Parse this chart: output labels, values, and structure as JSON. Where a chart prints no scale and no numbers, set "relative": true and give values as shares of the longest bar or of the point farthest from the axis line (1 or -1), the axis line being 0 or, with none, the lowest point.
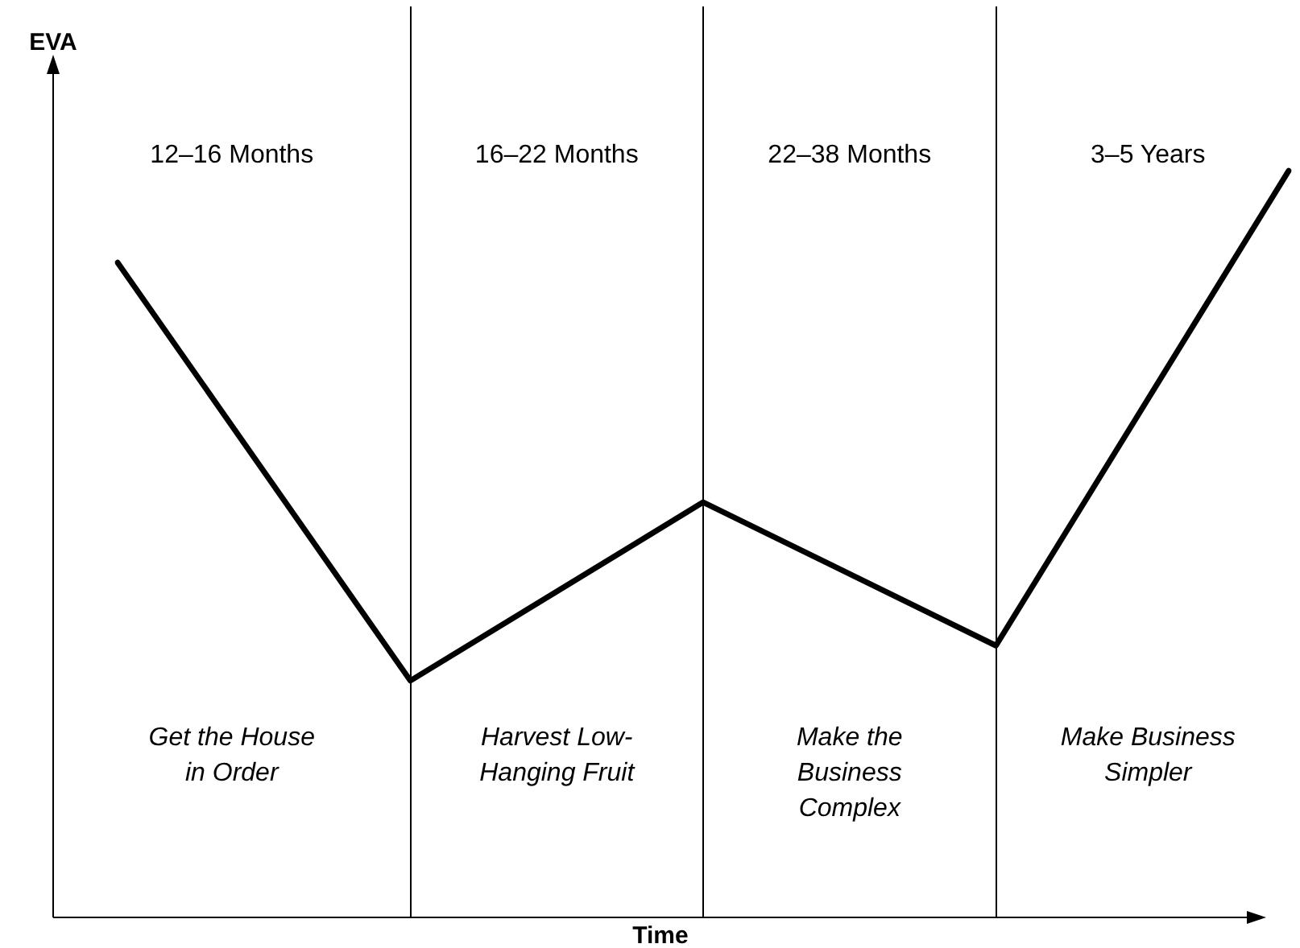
{
  "chart_data": {
    "type": "line",
    "relative": true,
    "ylabel": "EVA",
    "xlabel": "Time",
    "categories": [
      null,
      null,
      null,
      null,
      null
    ],
    "series": [
      {
        "color": "#000000",
        "values": [
          0.877,
          0.317,
          0.556,
          0.364,
          1
        ]
      }
    ],
    "annotations": [
      "12–16 Months",
      "16–22 Months",
      "22–38 Months",
      "3–5 Years",
      "Get the House\nin Order",
      "Harvest Low-\nHanging Fruit",
      "Make the\nBusiness\nComplex",
      "Make Business\nSimpler"
    ],
    "marker": "none",
    "grid": "x",
    "legend": false
  }
}
